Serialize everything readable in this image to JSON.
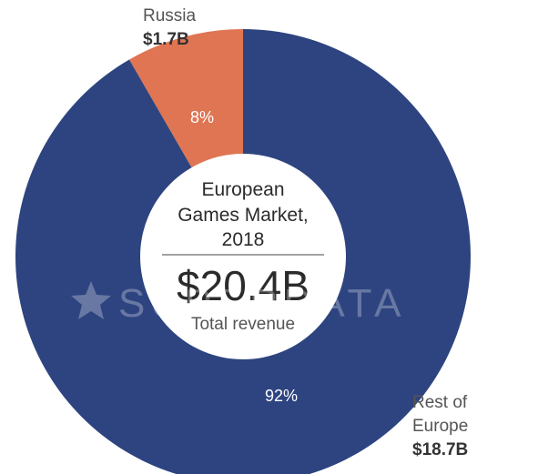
{
  "chart_data": {
    "type": "pie",
    "title": "European Games Market, 2018",
    "title_lines": [
      "European",
      "Games Market,",
      "2018"
    ],
    "total": "$20.4B",
    "total_label": "Total revenue",
    "slices": [
      {
        "name": "Russia",
        "value": 1.7,
        "value_label": "$1.7B",
        "percent_label": "8%",
        "color": "#e07553"
      },
      {
        "name_lines": [
          "Rest of",
          "Europe"
        ],
        "value": 18.7,
        "value_label": "$18.7B",
        "percent_label": "92%",
        "color": "#2e4480"
      }
    ]
  },
  "watermark": {
    "text": "SUPERDATA",
    "icon": "star-icon"
  }
}
